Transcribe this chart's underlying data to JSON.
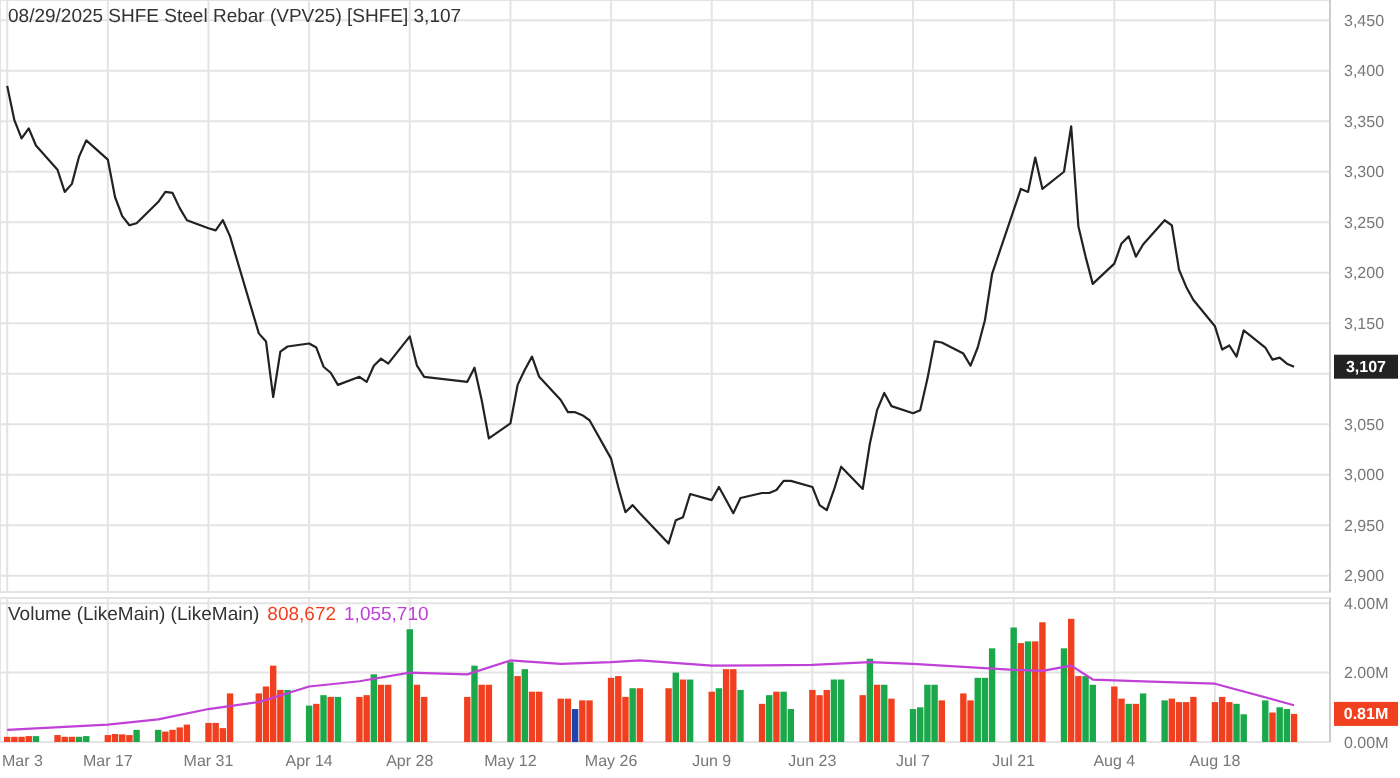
{
  "chart_data": [
    {
      "type": "line",
      "title": "08/29/2025 SHFE Steel Rebar (VPV25) [SHFE] 3,107",
      "grid": true,
      "tick_labels": "y",
      "xlim": [
        "2025-03-02",
        "2025-09-03"
      ],
      "ylim": [
        2884,
        3470
      ],
      "xticks": [
        {
          "value": "2025-03-03",
          "label": null
        },
        {
          "value": "2025-03-17",
          "label": null
        },
        {
          "value": "2025-03-31",
          "label": null
        },
        {
          "value": "2025-04-14",
          "label": null
        },
        {
          "value": "2025-04-28",
          "label": null
        },
        {
          "value": "2025-05-12",
          "label": null
        },
        {
          "value": "2025-05-26",
          "label": null
        },
        {
          "value": "2025-06-09",
          "label": null
        },
        {
          "value": "2025-06-23",
          "label": null
        },
        {
          "value": "2025-07-07",
          "label": null
        },
        {
          "value": "2025-07-21",
          "label": null
        },
        {
          "value": "2025-08-04",
          "label": null
        },
        {
          "value": "2025-08-18",
          "label": null
        }
      ],
      "yticks": [
        {
          "value": 2900,
          "label": "2,900"
        },
        {
          "value": 2950,
          "label": "2,950"
        },
        {
          "value": 3000,
          "label": "3,000"
        },
        {
          "value": 3050,
          "label": "3,050"
        },
        {
          "value": 3100,
          "label": null
        },
        {
          "value": 3150,
          "label": "3,150"
        },
        {
          "value": 3200,
          "label": "3,200"
        },
        {
          "value": 3250,
          "label": "3,250"
        },
        {
          "value": 3300,
          "label": "3,300"
        },
        {
          "value": 3350,
          "label": "3,350"
        },
        {
          "value": 3400,
          "label": "3,400"
        },
        {
          "value": 3450,
          "label": "3,450"
        }
      ],
      "annotations": [
        "3,107"
      ],
      "x": [
        "2025-03-03",
        "2025-03-04",
        "2025-03-05",
        "2025-03-06",
        "2025-03-07",
        "2025-03-10",
        "2025-03-11",
        "2025-03-12",
        "2025-03-13",
        "2025-03-14",
        "2025-03-17",
        "2025-03-18",
        "2025-03-19",
        "2025-03-20",
        "2025-03-21",
        "2025-03-24",
        "2025-03-25",
        "2025-03-26",
        "2025-03-27",
        "2025-03-28",
        "2025-03-31",
        "2025-04-01",
        "2025-04-02",
        "2025-04-03",
        "2025-04-07",
        "2025-04-08",
        "2025-04-09",
        "2025-04-10",
        "2025-04-11",
        "2025-04-14",
        "2025-04-15",
        "2025-04-16",
        "2025-04-17",
        "2025-04-18",
        "2025-04-21",
        "2025-04-22",
        "2025-04-23",
        "2025-04-24",
        "2025-04-25",
        "2025-04-28",
        "2025-04-29",
        "2025-04-30",
        "2025-05-06",
        "2025-05-07",
        "2025-05-08",
        "2025-05-09",
        "2025-05-12",
        "2025-05-13",
        "2025-05-14",
        "2025-05-15",
        "2025-05-16",
        "2025-05-19",
        "2025-05-20",
        "2025-05-21",
        "2025-05-22",
        "2025-05-23",
        "2025-05-26",
        "2025-05-27",
        "2025-05-28",
        "2025-05-29",
        "2025-05-30",
        "2025-06-03",
        "2025-06-04",
        "2025-06-05",
        "2025-06-06",
        "2025-06-09",
        "2025-06-10",
        "2025-06-11",
        "2025-06-12",
        "2025-06-13",
        "2025-06-16",
        "2025-06-17",
        "2025-06-18",
        "2025-06-19",
        "2025-06-20",
        "2025-06-23",
        "2025-06-24",
        "2025-06-25",
        "2025-06-26",
        "2025-06-27",
        "2025-06-30",
        "2025-07-01",
        "2025-07-02",
        "2025-07-03",
        "2025-07-04",
        "2025-07-07",
        "2025-07-08",
        "2025-07-09",
        "2025-07-10",
        "2025-07-11",
        "2025-07-14",
        "2025-07-15",
        "2025-07-16",
        "2025-07-17",
        "2025-07-18",
        "2025-07-21",
        "2025-07-22",
        "2025-07-23",
        "2025-07-24",
        "2025-07-25",
        "2025-07-28",
        "2025-07-29",
        "2025-07-30",
        "2025-07-31",
        "2025-08-01",
        "2025-08-04",
        "2025-08-05",
        "2025-08-06",
        "2025-08-07",
        "2025-08-08",
        "2025-08-11",
        "2025-08-12",
        "2025-08-13",
        "2025-08-14",
        "2025-08-15",
        "2025-08-18",
        "2025-08-19",
        "2025-08-20",
        "2025-08-21",
        "2025-08-22",
        "2025-08-25",
        "2025-08-26",
        "2025-08-27",
        "2025-08-28",
        "2025-08-29"
      ],
      "series": [
        {
          "color": "#222222",
          "values": [
            3385,
            3351,
            3333,
            3343,
            3326,
            3302,
            3280,
            3288,
            3315,
            3331,
            3312,
            3275,
            3256,
            3247,
            3249,
            3270,
            3280,
            3279,
            3264,
            3252,
            3244,
            3242,
            3252,
            3236,
            3140,
            3132,
            3077,
            3122,
            3127,
            3130,
            3126,
            3107,
            3101,
            3089,
            3097,
            3092,
            3108,
            3115,
            3110,
            3137,
            3108,
            3097,
            3092,
            3106,
            3074,
            3036,
            3051,
            3089,
            3104,
            3117,
            3097,
            3074,
            3062,
            3062,
            3059,
            3054,
            3016,
            2988,
            2963,
            2970,
            2962,
            2932,
            2955,
            2958,
            2981,
            2975,
            2988,
            2975,
            2962,
            2977,
            2982,
            2982,
            2985,
            2994,
            2994,
            2988,
            2970,
            2965,
            2985,
            3008,
            2986,
            3031,
            3064,
            3081,
            3068,
            3061,
            3064,
            3095,
            3132,
            3131,
            3120,
            3108,
            3126,
            3153,
            3199,
            3262,
            3283,
            3280,
            3314,
            3283,
            3300,
            3345,
            3246,
            3216,
            3189,
            3209,
            3229,
            3236,
            3216,
            3228,
            3252,
            3247,
            3203,
            3186,
            3173,
            3147,
            3124,
            3128,
            3117,
            3143,
            3126,
            3114,
            3116,
            3110,
            3107
          ]
        }
      ]
    },
    {
      "type": "bar",
      "title": "Volume (LikeMain)  (LikeMain)",
      "grid": true,
      "xlim": [
        "2025-03-02",
        "2025-09-03"
      ],
      "ylim": [
        0,
        4.15
      ],
      "xticks": [
        {
          "value": "2025-03-03",
          "label": "Mar 3"
        },
        {
          "value": "2025-03-17",
          "label": "Mar 17"
        },
        {
          "value": "2025-03-31",
          "label": "Mar 31"
        },
        {
          "value": "2025-04-14",
          "label": "Apr 14"
        },
        {
          "value": "2025-04-28",
          "label": "Apr 28"
        },
        {
          "value": "2025-05-12",
          "label": "May 12"
        },
        {
          "value": "2025-05-26",
          "label": "May 26"
        },
        {
          "value": "2025-06-09",
          "label": "Jun 9"
        },
        {
          "value": "2025-06-23",
          "label": "Jun 23"
        },
        {
          "value": "2025-07-07",
          "label": "Jul 7"
        },
        {
          "value": "2025-07-21",
          "label": "Jul 21"
        },
        {
          "value": "2025-08-04",
          "label": "Aug 4"
        },
        {
          "value": "2025-08-18",
          "label": "Aug 18"
        }
      ],
      "yticks": [
        {
          "value": 0,
          "label": "0.00M"
        },
        {
          "value": 2,
          "label": "2.00M"
        },
        {
          "value": 4,
          "label": "4.00M"
        }
      ],
      "annotations": [
        "808,672",
        "1,055,710",
        "0.81M"
      ],
      "x": [
        "2025-03-03",
        "2025-03-04",
        "2025-03-05",
        "2025-03-06",
        "2025-03-07",
        "2025-03-10",
        "2025-03-11",
        "2025-03-12",
        "2025-03-13",
        "2025-03-14",
        "2025-03-17",
        "2025-03-18",
        "2025-03-19",
        "2025-03-20",
        "2025-03-21",
        "2025-03-24",
        "2025-03-25",
        "2025-03-26",
        "2025-03-27",
        "2025-03-28",
        "2025-03-31",
        "2025-04-01",
        "2025-04-02",
        "2025-04-03",
        "2025-04-07",
        "2025-04-08",
        "2025-04-09",
        "2025-04-10",
        "2025-04-11",
        "2025-04-14",
        "2025-04-15",
        "2025-04-16",
        "2025-04-17",
        "2025-04-18",
        "2025-04-21",
        "2025-04-22",
        "2025-04-23",
        "2025-04-24",
        "2025-04-25",
        "2025-04-28",
        "2025-04-29",
        "2025-04-30",
        "2025-05-06",
        "2025-05-07",
        "2025-05-08",
        "2025-05-09",
        "2025-05-12",
        "2025-05-13",
        "2025-05-14",
        "2025-05-15",
        "2025-05-16",
        "2025-05-19",
        "2025-05-20",
        "2025-05-21",
        "2025-05-22",
        "2025-05-23",
        "2025-05-26",
        "2025-05-27",
        "2025-05-28",
        "2025-05-29",
        "2025-05-30",
        "2025-06-03",
        "2025-06-04",
        "2025-06-05",
        "2025-06-06",
        "2025-06-09",
        "2025-06-10",
        "2025-06-11",
        "2025-06-12",
        "2025-06-13",
        "2025-06-16",
        "2025-06-17",
        "2025-06-18",
        "2025-06-19",
        "2025-06-20",
        "2025-06-23",
        "2025-06-24",
        "2025-06-25",
        "2025-06-26",
        "2025-06-27",
        "2025-06-30",
        "2025-07-01",
        "2025-07-02",
        "2025-07-03",
        "2025-07-04",
        "2025-07-07",
        "2025-07-08",
        "2025-07-09",
        "2025-07-10",
        "2025-07-11",
        "2025-07-14",
        "2025-07-15",
        "2025-07-16",
        "2025-07-17",
        "2025-07-18",
        "2025-07-21",
        "2025-07-22",
        "2025-07-23",
        "2025-07-24",
        "2025-07-25",
        "2025-07-28",
        "2025-07-29",
        "2025-07-30",
        "2025-07-31",
        "2025-08-01",
        "2025-08-04",
        "2025-08-05",
        "2025-08-06",
        "2025-08-07",
        "2025-08-08",
        "2025-08-11",
        "2025-08-12",
        "2025-08-13",
        "2025-08-14",
        "2025-08-15",
        "2025-08-18",
        "2025-08-19",
        "2025-08-20",
        "2025-08-21",
        "2025-08-22",
        "2025-08-25",
        "2025-08-26",
        "2025-08-27",
        "2025-08-28",
        "2025-08-29"
      ],
      "series": [
        {
          "color": "#f0401f",
          "values": [
            0.15,
            0.15,
            0.15,
            0.17,
            0.17,
            0.2,
            0.15,
            0.15,
            0.15,
            0.17,
            0.2,
            0.23,
            0.22,
            0.2,
            0.35,
            0.35,
            0.3,
            0.35,
            0.42,
            0.5,
            0.55,
            0.55,
            0.4,
            1.4,
            1.4,
            1.6,
            2.2,
            1.5,
            1.5,
            1.05,
            1.1,
            1.35,
            1.3,
            1.3,
            1.3,
            1.35,
            1.95,
            1.65,
            1.65,
            3.25,
            1.65,
            1.3,
            1.3,
            2.2,
            1.65,
            1.65,
            2.3,
            1.9,
            2.1,
            1.45,
            1.45,
            1.25,
            1.25,
            0.95,
            1.2,
            1.2,
            1.85,
            1.9,
            1.3,
            1.55,
            1.55,
            1.55,
            2.0,
            1.8,
            1.8,
            1.45,
            1.55,
            2.1,
            2.1,
            1.5,
            1.1,
            1.35,
            1.45,
            1.45,
            0.95,
            1.5,
            1.35,
            1.5,
            1.8,
            1.8,
            1.35,
            2.4,
            1.65,
            1.65,
            1.25,
            0.95,
            1.0,
            1.65,
            1.65,
            1.2,
            1.4,
            1.2,
            1.85,
            1.85,
            2.7,
            3.3,
            2.85,
            2.9,
            2.9,
            3.45,
            2.7,
            3.55,
            1.9,
            1.9,
            1.65,
            1.6,
            1.25,
            1.1,
            1.1,
            1.4,
            1.2,
            1.25,
            1.15,
            1.15,
            1.3,
            1.15,
            1.3,
            1.15,
            1.1,
            0.8,
            1.2,
            0.85,
            1.0,
            0.95,
            0.81
          ],
          "colors": [
            "#f0401f",
            "#f0401f",
            "#f0401f",
            "#f0401f",
            "#1aa84a",
            "#f0401f",
            "#f0401f",
            "#f0401f",
            "#1aa84a",
            "#1aa84a",
            "#f0401f",
            "#f0401f",
            "#f0401f",
            "#f0401f",
            "#1aa84a",
            "#1aa84a",
            "#f0401f",
            "#f0401f",
            "#f0401f",
            "#f0401f",
            "#f0401f",
            "#f0401f",
            "#f0401f",
            "#f0401f",
            "#f0401f",
            "#f0401f",
            "#f0401f",
            "#f0401f",
            "#1aa84a",
            "#1aa84a",
            "#f0401f",
            "#1aa84a",
            "#f0401f",
            "#1aa84a",
            "#f0401f",
            "#f0401f",
            "#1aa84a",
            "#f0401f",
            "#f0401f",
            "#1aa84a",
            "#f0401f",
            "#f0401f",
            "#f0401f",
            "#1aa84a",
            "#f0401f",
            "#f0401f",
            "#1aa84a",
            "#f0401f",
            "#1aa84a",
            "#f0401f",
            "#f0401f",
            "#f0401f",
            "#f0401f",
            "#2244aa",
            "#f0401f",
            "#f0401f",
            "#f0401f",
            "#f0401f",
            "#f0401f",
            "#1aa84a",
            "#f0401f",
            "#f0401f",
            "#1aa84a",
            "#f0401f",
            "#1aa84a",
            "#f0401f",
            "#1aa84a",
            "#f0401f",
            "#f0401f",
            "#1aa84a",
            "#f0401f",
            "#1aa84a",
            "#f0401f",
            "#1aa84a",
            "#1aa84a",
            "#f0401f",
            "#f0401f",
            "#f0401f",
            "#1aa84a",
            "#1aa84a",
            "#f0401f",
            "#1aa84a",
            "#f0401f",
            "#1aa84a",
            "#f0401f",
            "#1aa84a",
            "#1aa84a",
            "#1aa84a",
            "#1aa84a",
            "#f0401f",
            "#f0401f",
            "#f0401f",
            "#1aa84a",
            "#1aa84a",
            "#1aa84a",
            "#1aa84a",
            "#f0401f",
            "#1aa84a",
            "#f0401f",
            "#f0401f",
            "#1aa84a",
            "#f0401f",
            "#f0401f",
            "#1aa84a",
            "#1aa84a",
            "#f0401f",
            "#f0401f",
            "#1aa84a",
            "#f0401f",
            "#1aa84a",
            "#1aa84a",
            "#f0401f",
            "#f0401f",
            "#f0401f",
            "#f0401f",
            "#f0401f",
            "#f0401f",
            "#f0401f",
            "#1aa84a",
            "#1aa84a",
            "#1aa84a",
            "#f0401f",
            "#1aa84a",
            "#1aa84a",
            "#f0401f"
          ]
        },
        {
          "type": "line",
          "color": "#c040d8",
          "x": [
            "2025-03-03",
            "2025-03-17",
            "2025-03-24",
            "2025-03-31",
            "2025-04-07",
            "2025-04-14",
            "2025-04-21",
            "2025-04-28",
            "2025-05-06",
            "2025-05-12",
            "2025-05-19",
            "2025-05-26",
            "2025-05-30",
            "2025-06-09",
            "2025-06-23",
            "2025-07-01",
            "2025-07-07",
            "2025-07-21",
            "2025-07-25",
            "2025-07-29",
            "2025-08-01",
            "2025-08-08",
            "2025-08-18",
            "2025-08-29"
          ],
          "values": [
            0.35,
            0.5,
            0.65,
            0.95,
            1.15,
            1.6,
            1.75,
            2.0,
            1.95,
            2.35,
            2.25,
            2.3,
            2.35,
            2.2,
            2.22,
            2.3,
            2.25,
            2.08,
            2.05,
            2.2,
            1.8,
            1.75,
            1.68,
            1.06
          ]
        }
      ]
    }
  ]
}
